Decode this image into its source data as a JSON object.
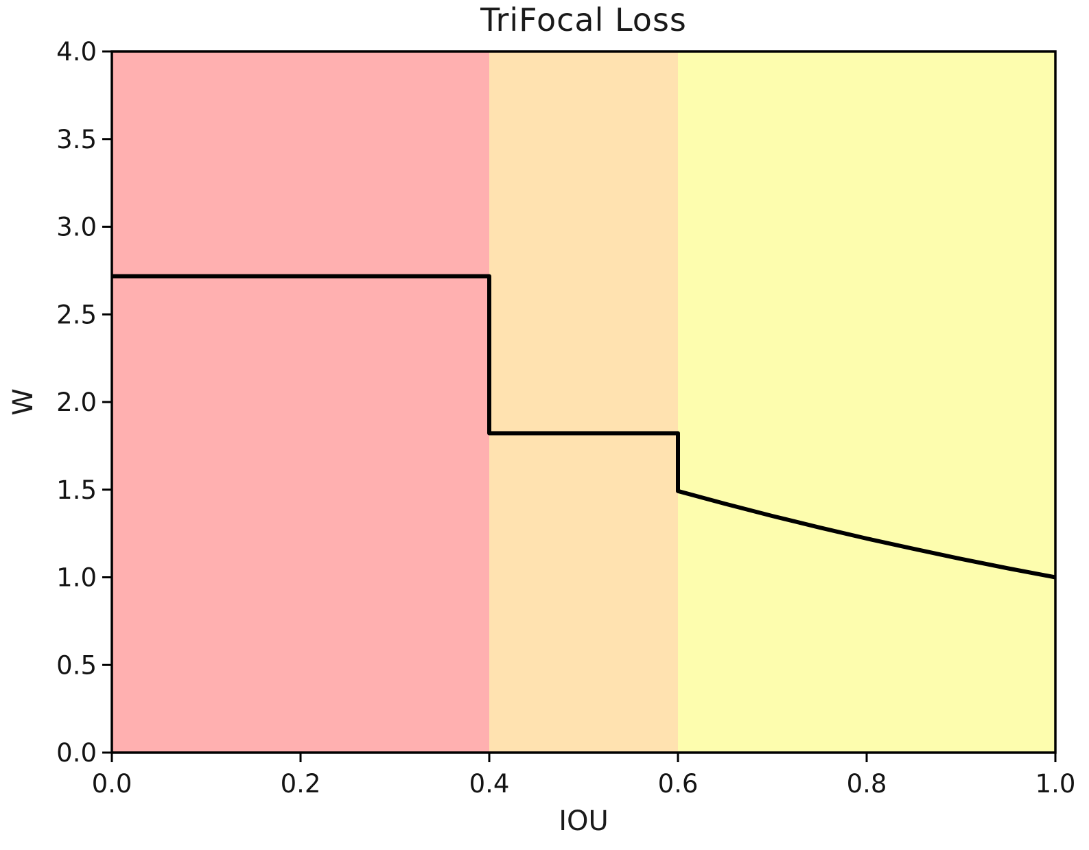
{
  "chart_data": {
    "type": "line",
    "title": "TriFocal Loss",
    "xlabel": "IOU",
    "ylabel": "W",
    "xlim": [
      0.0,
      1.0
    ],
    "ylim": [
      0.0,
      4.0
    ],
    "grid": false,
    "legend": "none",
    "frame": true,
    "x_ticks": [
      "0.0",
      "0.2",
      "0.4",
      "0.6",
      "0.8",
      "1.0"
    ],
    "y_ticks": [
      "0.0",
      "0.5",
      "1.0",
      "1.5",
      "2.0",
      "2.5",
      "3.0",
      "3.5",
      "4.0"
    ],
    "background_regions": [
      {
        "name": "low-iou-region",
        "x0": 0.0,
        "x1": 0.4,
        "color": "#ffb0b0"
      },
      {
        "name": "mid-iou-region",
        "x0": 0.4,
        "x1": 0.6,
        "color": "#ffe2b0"
      },
      {
        "name": "high-iou-region",
        "x0": 0.6,
        "x1": 1.0,
        "color": "#fdfdae"
      }
    ],
    "series": [
      {
        "name": "trifocal-weight-curve",
        "color": "#000000",
        "line_width": 6,
        "description": "Piecewise weight: constant 2.72 for IOU<0.4, constant 1.82 for 0.4<=IOU<0.6, exponential decay e^(1-IOU) from 1.49 to 1.00 for IOU>=0.6",
        "points": [
          [
            0.0,
            2.718
          ],
          [
            0.4,
            2.718
          ],
          [
            0.4,
            1.822
          ],
          [
            0.6,
            1.822
          ],
          [
            0.6,
            1.492
          ],
          [
            0.65,
            1.419
          ],
          [
            0.7,
            1.35
          ],
          [
            0.75,
            1.284
          ],
          [
            0.8,
            1.221
          ],
          [
            0.85,
            1.162
          ],
          [
            0.9,
            1.105
          ],
          [
            0.95,
            1.051
          ],
          [
            1.0,
            1.0
          ]
        ]
      }
    ],
    "axis_color": "#000000",
    "text_color": "#141414"
  }
}
